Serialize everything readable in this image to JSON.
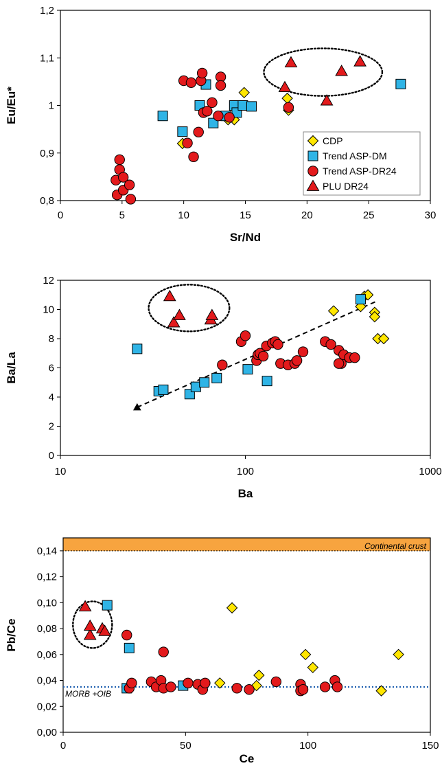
{
  "chart_data": [
    {
      "type": "scatter",
      "xlabel": "Sr/Nd",
      "ylabel": "Eu/Eu*",
      "xlim": [
        0,
        30
      ],
      "ylim": [
        0.8,
        1.2
      ],
      "x_ticks": [
        "0",
        "5",
        "10",
        "15",
        "20",
        "25",
        "30"
      ],
      "y_ticks": [
        "0,8",
        "0,9",
        "1",
        "1,1",
        "1,2"
      ],
      "legend_position": "bottom-right",
      "legend": [
        "CDP",
        "Trend ASP-DM",
        "Trend ASP-DR24",
        "PLU DR24"
      ],
      "series": [
        {
          "name": "CDP",
          "marker": "diamond",
          "color": "#FFE600",
          "points": [
            [
              9.9,
              0.92
            ],
            [
              13.6,
              0.97
            ],
            [
              14.1,
              0.97
            ],
            [
              14.9,
              1.027
            ],
            [
              18.4,
              1.015
            ],
            [
              18.5,
              0.99
            ]
          ]
        },
        {
          "name": "Trend ASP-DM",
          "marker": "square",
          "color": "#2FB4E6",
          "points": [
            [
              8.3,
              0.978
            ],
            [
              9.9,
              0.945
            ],
            [
              11.3,
              1.0
            ],
            [
              11.8,
              1.044
            ],
            [
              12.4,
              0.963
            ],
            [
              13.4,
              0.978
            ],
            [
              14.1,
              1.0
            ],
            [
              14.3,
              0.985
            ],
            [
              14.8,
              1.0
            ],
            [
              15.5,
              0.998
            ],
            [
              27.6,
              1.045
            ]
          ]
        },
        {
          "name": "Trend ASP-DR24",
          "marker": "circle",
          "color": "#E31A1C",
          "points": [
            [
              4.5,
              0.843
            ],
            [
              4.6,
              0.812
            ],
            [
              4.8,
              0.886
            ],
            [
              4.8,
              0.865
            ],
            [
              5.1,
              0.849
            ],
            [
              5.1,
              0.822
            ],
            [
              5.6,
              0.833
            ],
            [
              5.7,
              0.803
            ],
            [
              10.0,
              1.052
            ],
            [
              10.3,
              0.921
            ],
            [
              10.6,
              1.048
            ],
            [
              10.8,
              0.892
            ],
            [
              11.2,
              0.944
            ],
            [
              11.4,
              1.052
            ],
            [
              11.5,
              1.068
            ],
            [
              11.6,
              0.985
            ],
            [
              11.9,
              0.988
            ],
            [
              12.3,
              1.006
            ],
            [
              12.8,
              0.978
            ],
            [
              13.0,
              1.06
            ],
            [
              13.0,
              1.042
            ],
            [
              13.7,
              0.975
            ],
            [
              18.5,
              0.996
            ]
          ]
        },
        {
          "name": "PLU DR24",
          "marker": "triangle",
          "color": "#E31A1C",
          "points": [
            [
              18.2,
              1.038
            ],
            [
              18.7,
              1.09
            ],
            [
              21.6,
              1.01
            ],
            [
              22.8,
              1.072
            ],
            [
              24.3,
              1.092
            ]
          ]
        }
      ],
      "ellipse": {
        "cx": 21.3,
        "cy": 1.07,
        "rx": 4.8,
        "ry": 0.05
      }
    },
    {
      "type": "scatter",
      "xlabel": "Ba",
      "ylabel": "Ba/La",
      "x_scale": "log",
      "xlim": [
        10,
        1000
      ],
      "ylim": [
        0,
        12
      ],
      "x_ticks": [
        "10",
        "100",
        "1000"
      ],
      "y_ticks": [
        "0",
        "2",
        "4",
        "6",
        "8",
        "10",
        "12"
      ],
      "series": [
        {
          "name": "CDP",
          "marker": "diamond",
          "color": "#FFE600",
          "points": [
            [
              300,
              9.9
            ],
            [
              420,
              10.2
            ],
            [
              440,
              10.9
            ],
            [
              460,
              11.0
            ],
            [
              500,
              9.8
            ],
            [
              500,
              9.5
            ],
            [
              520,
              8.0
            ],
            [
              560,
              8.0
            ]
          ]
        },
        {
          "name": "Trend ASP-DM",
          "marker": "square",
          "color": "#2FB4E6",
          "points": [
            [
              26,
              7.3
            ],
            [
              34,
              4.4
            ],
            [
              36,
              4.5
            ],
            [
              50,
              4.2
            ],
            [
              54,
              4.7
            ],
            [
              60,
              5.0
            ],
            [
              70,
              5.3
            ],
            [
              103,
              5.9
            ],
            [
              131,
              5.1
            ],
            [
              420,
              10.7
            ]
          ]
        },
        {
          "name": "Trend ASP-DR24",
          "marker": "circle",
          "color": "#E31A1C",
          "points": [
            [
              75,
              6.2
            ],
            [
              95,
              7.8
            ],
            [
              100,
              8.2
            ],
            [
              115,
              6.5
            ],
            [
              117,
              6.9
            ],
            [
              120,
              7.0
            ],
            [
              125,
              6.8
            ],
            [
              130,
              7.5
            ],
            [
              140,
              7.7
            ],
            [
              145,
              7.8
            ],
            [
              150,
              7.6
            ],
            [
              155,
              6.3
            ],
            [
              170,
              6.2
            ],
            [
              185,
              6.3
            ],
            [
              190,
              6.5
            ],
            [
              205,
              7.1
            ],
            [
              270,
              7.8
            ],
            [
              290,
              7.6
            ],
            [
              320,
              7.2
            ],
            [
              330,
              6.3
            ],
            [
              340,
              6.9
            ],
            [
              365,
              6.7
            ],
            [
              390,
              6.7
            ],
            [
              320,
              6.3
            ]
          ]
        },
        {
          "name": "PLU DR24",
          "marker": "triangle",
          "color": "#E31A1C",
          "points": [
            [
              39,
              10.9
            ],
            [
              41,
              9.1
            ],
            [
              44,
              9.6
            ],
            [
              65,
              9.3
            ],
            [
              66,
              9.6
            ]
          ]
        },
        {
          "name": "end-point",
          "marker": "small-triangle",
          "color": "#000000",
          "points": [
            [
              26,
              3.3
            ]
          ]
        }
      ],
      "trend_line": {
        "from": [
          26,
          3.3
        ],
        "to": [
          520,
          10.6
        ]
      },
      "ellipse": {
        "center_x": 50,
        "center_y": 10.1,
        "x_range": [
          30,
          82
        ],
        "ry": 1.6
      }
    },
    {
      "type": "scatter",
      "xlabel": "Ce",
      "ylabel": "Pb/Ce",
      "xlim": [
        0,
        150
      ],
      "ylim": [
        0,
        0.15
      ],
      "x_ticks": [
        "0",
        "50",
        "100",
        "150"
      ],
      "y_ticks": [
        "0,00",
        "0,02",
        "0,04",
        "0,06",
        "0,08",
        "0,10",
        "0,12",
        "0,14"
      ],
      "band": {
        "label": "Continental crust",
        "y_range": [
          0.14,
          0.15
        ],
        "color": "#F7A43F"
      },
      "reference_line": {
        "label": "MORB +OIB",
        "y": 0.035,
        "color": "#1F5FAF"
      },
      "series": [
        {
          "name": "CDP",
          "marker": "diamond",
          "color": "#FFE600",
          "points": [
            [
              64,
              0.038
            ],
            [
              69,
              0.096
            ],
            [
              79,
              0.036
            ],
            [
              80,
              0.044
            ],
            [
              99,
              0.06
            ],
            [
              102,
              0.05
            ],
            [
              130,
              0.032
            ],
            [
              137,
              0.06
            ]
          ]
        },
        {
          "name": "Trend ASP-DM",
          "marker": "square",
          "color": "#2FB4E6",
          "points": [
            [
              18,
              0.098
            ],
            [
              26,
              0.034
            ],
            [
              27,
              0.065
            ],
            [
              49,
              0.036
            ]
          ]
        },
        {
          "name": "Trend ASP-DR24",
          "marker": "circle",
          "color": "#E31A1C",
          "points": [
            [
              26,
              0.075
            ],
            [
              27,
              0.034
            ],
            [
              28,
              0.038
            ],
            [
              36,
              0.039
            ],
            [
              38,
              0.035
            ],
            [
              40,
              0.04
            ],
            [
              41,
              0.034
            ],
            [
              41,
              0.062
            ],
            [
              44,
              0.035
            ],
            [
              51,
              0.038
            ],
            [
              55,
              0.037
            ],
            [
              57,
              0.033
            ],
            [
              58,
              0.038
            ],
            [
              71,
              0.034
            ],
            [
              76,
              0.033
            ],
            [
              87,
              0.039
            ],
            [
              97,
              0.037
            ],
            [
              97,
              0.032
            ],
            [
              98,
              0.033
            ],
            [
              107,
              0.035
            ],
            [
              111,
              0.04
            ],
            [
              112,
              0.035
            ]
          ]
        },
        {
          "name": "PLU DR24",
          "marker": "triangle",
          "color": "#E31A1C",
          "points": [
            [
              9,
              0.097
            ],
            [
              11,
              0.075
            ],
            [
              11,
              0.082
            ],
            [
              16,
              0.08
            ],
            [
              17,
              0.078
            ]
          ]
        }
      ],
      "ellipse": {
        "cx": 12,
        "cy": 0.083,
        "rx": 8,
        "ry": 0.018
      }
    }
  ]
}
